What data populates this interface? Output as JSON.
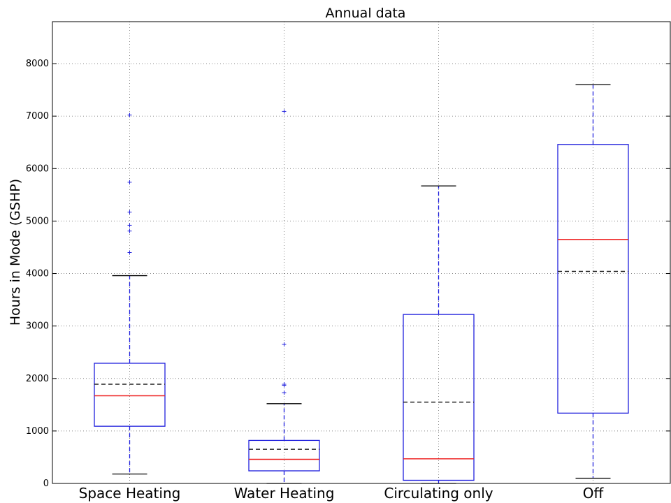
{
  "chart_data": {
    "type": "box",
    "title": "Annual data",
    "xlabel": "",
    "ylabel": "Hours in Mode (GSHP)",
    "ylim": [
      0,
      8800
    ],
    "yticks": [
      0,
      1000,
      2000,
      3000,
      4000,
      5000,
      6000,
      7000,
      8000
    ],
    "grid": true,
    "legend": "none",
    "colors": {
      "box": "#1f1fdd",
      "median": "#ee2222",
      "mean": "#222222",
      "whisker": "#1f1fdd",
      "cap": "#000000",
      "flier": "#2222dd",
      "grid": "#888888"
    },
    "categories": [
      "Space Heating",
      "Water Heating",
      "Circulating only",
      "Off"
    ],
    "boxes": [
      {
        "whisker_low": 180,
        "q1": 1090,
        "median": 1670,
        "mean": 1890,
        "q3": 2290,
        "whisker_high": 3960,
        "fliers": [
          4400,
          4810,
          4920,
          5170,
          5740,
          7020
        ]
      },
      {
        "whisker_low": 0,
        "q1": 240,
        "median": 460,
        "mean": 650,
        "q3": 820,
        "whisker_high": 1520,
        "fliers": [
          1730,
          1870,
          1890,
          2650,
          7090
        ]
      },
      {
        "whisker_low": 0,
        "q1": 60,
        "median": 470,
        "mean": 1550,
        "q3": 3220,
        "whisker_high": 5670,
        "fliers": []
      },
      {
        "whisker_low": 100,
        "q1": 1340,
        "median": 4650,
        "mean": 4040,
        "q3": 6460,
        "whisker_high": 7600,
        "fliers": []
      }
    ]
  }
}
